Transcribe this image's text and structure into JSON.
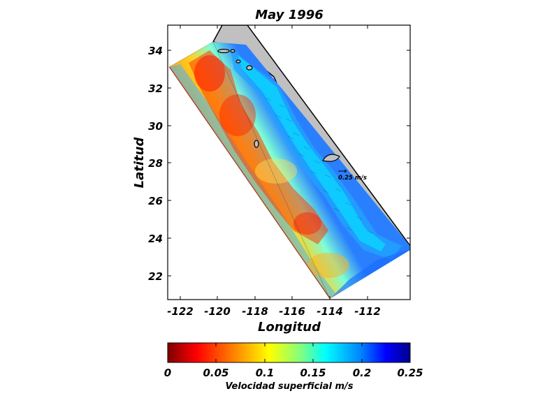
{
  "title": "May 1996",
  "xlabel": "Longitud",
  "ylabel": "Latitud",
  "x_ticks": [
    "-122",
    "-120",
    "-118",
    "-116",
    "-114",
    "-112"
  ],
  "y_ticks": [
    "22",
    "24",
    "26",
    "28",
    "30",
    "32",
    "34"
  ],
  "vector_reference": "0.25 m/s",
  "colorbar": {
    "label": "Velocidad superficial m/s",
    "ticks": [
      "0",
      "0.05",
      "0.1",
      "0.15",
      "0.2",
      "0.25"
    ],
    "colormap": "jet_reversed",
    "colors": [
      "#7f0000",
      "#ff0000",
      "#ff8c00",
      "#ffff00",
      "#7fff7f",
      "#00ffff",
      "#0080ff",
      "#0000ff",
      "#00008b"
    ]
  },
  "map": {
    "land_color": "#c0c0c0",
    "coast_color": "#000000"
  }
}
